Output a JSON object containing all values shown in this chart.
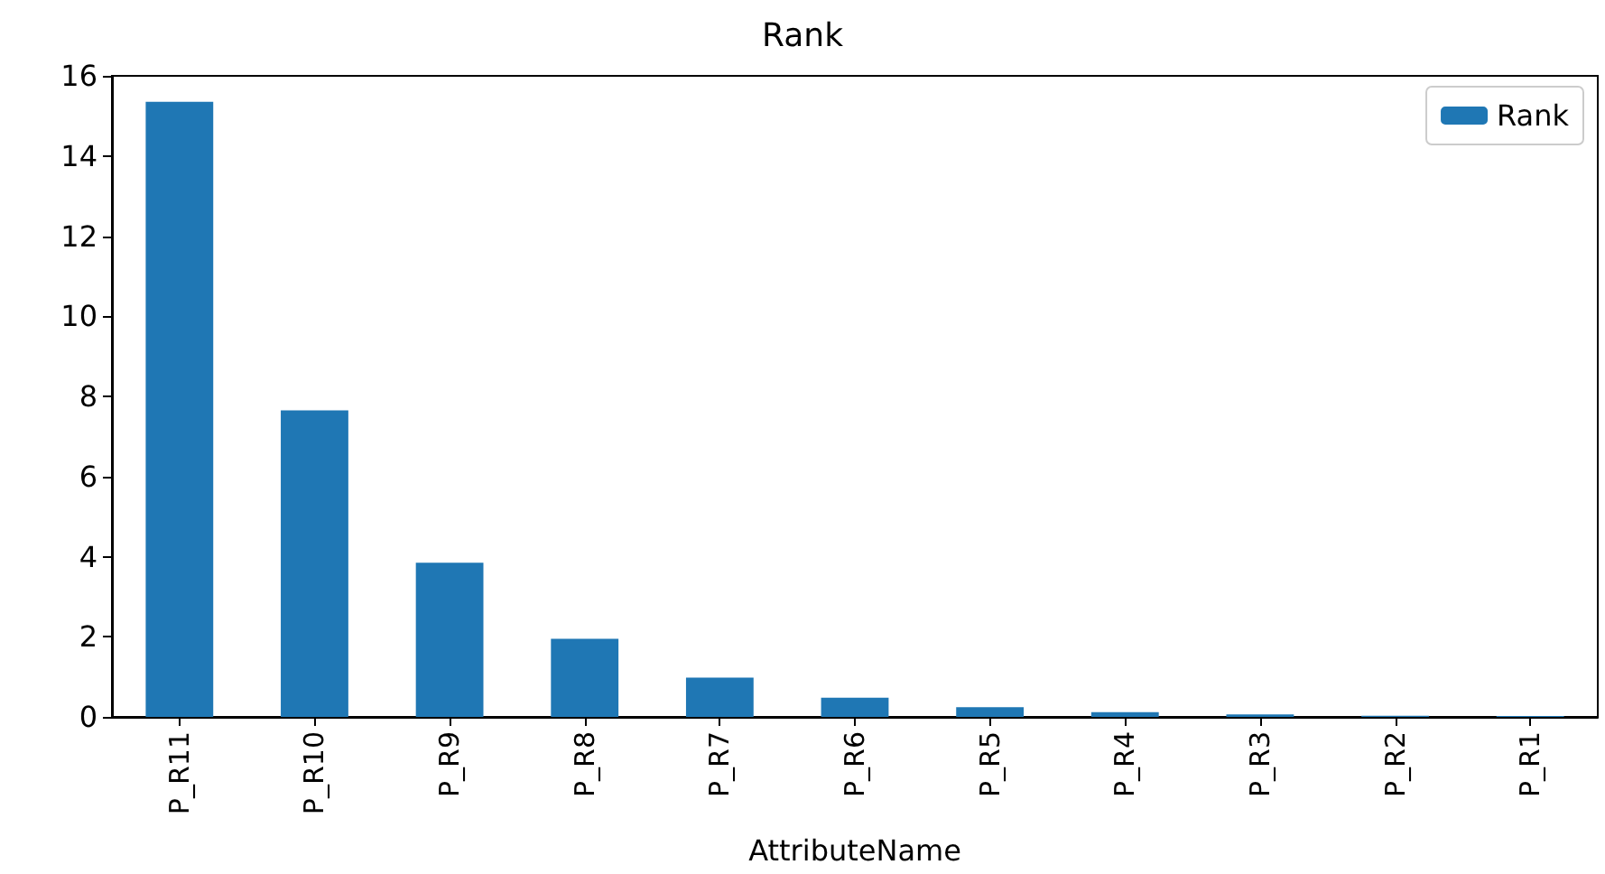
{
  "chart_data": {
    "type": "bar",
    "title": "Rank",
    "xlabel": "AttributeName",
    "categories": [
      "P_R11",
      "P_R10",
      "P_R9",
      "P_R8",
      "P_R7",
      "P_R6",
      "P_R5",
      "P_R4",
      "P_R3",
      "P_R2",
      "P_R1"
    ],
    "series": [
      {
        "name": "Rank",
        "color": "#1f77b4",
        "values": [
          15.35,
          7.65,
          3.85,
          1.95,
          0.98,
          0.48,
          0.24,
          0.12,
          0.06,
          0.03,
          0.02
        ]
      }
    ],
    "ylim": [
      0,
      16
    ],
    "yticks": [
      0,
      2,
      4,
      6,
      8,
      10,
      12,
      14,
      16
    ],
    "grid": false,
    "legend": "top right"
  }
}
